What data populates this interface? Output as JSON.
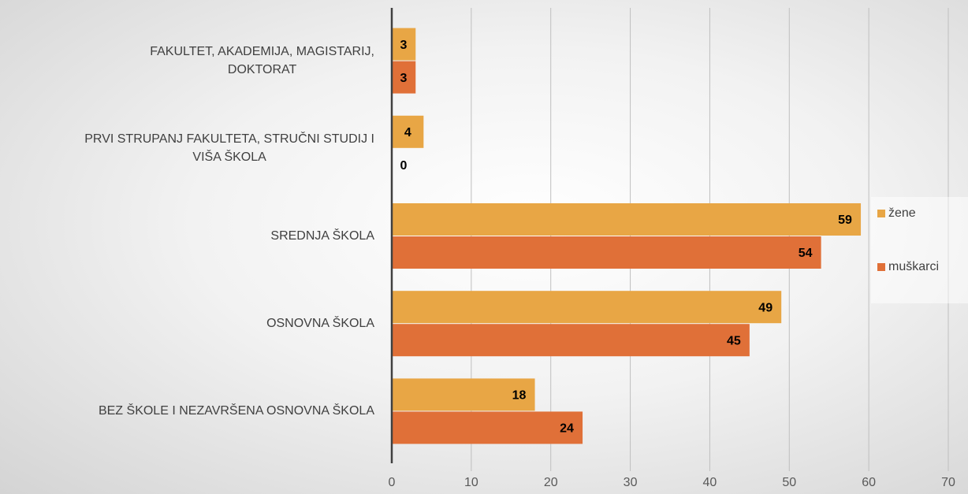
{
  "chart_data": {
    "type": "bar",
    "orientation": "horizontal",
    "categories": [
      "FAKULTET, AKADEMIJA, MAGISTARIJ,\nDOKTORAT",
      "PRVI STRUPANJ FAKULTETA, STRUČNI STUDIJ I\nVIŠA ŠKOLA",
      "SREDNJA ŠKOLA",
      "OSNOVNA ŠKOLA",
      "BEZ ŠKOLE I NEZAVRŠENA OSNOVNA ŠKOLA"
    ],
    "series": [
      {
        "name": "žene",
        "color": "#e8a645",
        "values": [
          3,
          4,
          59,
          49,
          18
        ]
      },
      {
        "name": "muškarci",
        "color": "#e07038",
        "values": [
          3,
          0,
          54,
          45,
          24
        ]
      }
    ],
    "xlim": [
      0,
      70
    ],
    "xticks": [
      0,
      10,
      20,
      30,
      40,
      50,
      60,
      70
    ],
    "grid": true,
    "legend": "right"
  }
}
